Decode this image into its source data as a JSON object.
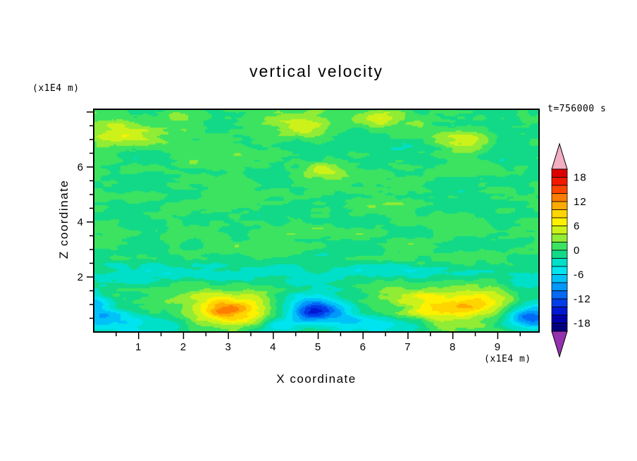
{
  "chart_data": {
    "type": "heatmap",
    "subtype": "filled-contour",
    "title": "vertical velocity",
    "time_label": "t=756000 s",
    "xlabel": "X coordinate",
    "ylabel": "Z coordinate",
    "x_unit": "(x1E4 m)",
    "y_unit": "(x1E4 m)",
    "xlim": [
      0,
      9.92
    ],
    "ylim": [
      0,
      8.1
    ],
    "x_ticks": [
      1,
      2,
      3,
      4,
      5,
      6,
      7,
      8,
      9
    ],
    "y_ticks": [
      2,
      4,
      6
    ],
    "levels": {
      "min": -20,
      "max": 20,
      "step": 2
    },
    "colorbar_labels": [
      {
        "text": "18",
        "value": 18
      },
      {
        "text": "12",
        "value": 12
      },
      {
        "text": "6",
        "value": 6
      },
      {
        "text": "0",
        "value": 0
      },
      {
        "text": "-6",
        "value": -6
      },
      {
        "text": "-12",
        "value": -12
      },
      {
        "text": "-18",
        "value": -18
      }
    ],
    "palette": {
      "over": "#F2AEC2",
      "under": "#9431AE",
      "bins": [
        "#DC0000",
        "#F21800",
        "#FF4600",
        "#FF7D00",
        "#FFAA00",
        "#FFD400",
        "#FDF100",
        "#CDF21A",
        "#90EC34",
        "#3BE361",
        "#12D987",
        "#00DFC8",
        "#00E4F0",
        "#00C2F8",
        "#0098FA",
        "#0069F5",
        "#003CE8",
        "#0018D2",
        "#0000AA",
        "#00007D"
      ]
    },
    "features": [
      {
        "x": 3.0,
        "z": 0.9,
        "peak": 13,
        "desc": "strong updraft, yellow blob with orange core"
      },
      {
        "x": 8.0,
        "z": 0.95,
        "peak": 10,
        "desc": "updraft, broad yellow blob with golden flecks"
      },
      {
        "x": 4.95,
        "z": 0.8,
        "peak": -16,
        "desc": "strong downdraft, blue blob with dark core"
      },
      {
        "x": 9.75,
        "z": 0.55,
        "peak": -12,
        "desc": "downdraft at right edge"
      },
      {
        "x": 0.25,
        "z": 0.5,
        "peak": -8,
        "desc": "cyan/light-blue downdraft at left edge"
      },
      {
        "x": 5.0,
        "z": 5.0,
        "peak": 2,
        "desc": "background turbulent green mottling near 0, yellow specks aloft"
      }
    ],
    "field_model": {
      "noise": [
        {
          "fx": 1.0,
          "fz": 2.2,
          "amp": 1.5,
          "seed": 11
        },
        {
          "fx": 2.2,
          "fz": 4.5,
          "amp": 1.1,
          "seed": 23
        },
        {
          "fx": 4.4,
          "fz": 9.0,
          "amp": 0.7,
          "seed": 37
        }
      ],
      "blobs": [
        [
          3.0,
          0.85,
          0.75,
          0.45,
          9.5
        ],
        [
          2.95,
          0.8,
          0.25,
          0.18,
          3.5
        ],
        [
          8.05,
          0.95,
          1.0,
          0.5,
          8.0
        ],
        [
          7.6,
          0.75,
          0.3,
          0.2,
          2.5
        ],
        [
          8.5,
          1.05,
          0.32,
          0.22,
          2.2
        ],
        [
          4.95,
          0.8,
          0.55,
          0.42,
          -12.0
        ],
        [
          4.9,
          0.75,
          0.22,
          0.16,
          -4.0
        ],
        [
          9.75,
          0.55,
          0.45,
          0.35,
          -12.0
        ],
        [
          9.6,
          1.6,
          0.4,
          0.3,
          -4.0
        ],
        [
          0.25,
          0.45,
          0.5,
          0.35,
          -7.0
        ],
        [
          0.05,
          1.05,
          0.25,
          0.3,
          -6.0
        ],
        [
          1.2,
          0.3,
          0.6,
          0.25,
          -4.0
        ],
        [
          4.15,
          0.25,
          0.4,
          0.2,
          -4.0
        ],
        [
          5.9,
          0.35,
          0.45,
          0.25,
          -5.0
        ],
        [
          6.85,
          0.3,
          0.4,
          0.2,
          -4.0
        ],
        [
          5.0,
          2.05,
          5.0,
          0.28,
          -2.8
        ],
        [
          0.6,
          7.2,
          0.45,
          0.35,
          5.5
        ],
        [
          1.15,
          6.85,
          0.22,
          0.16,
          2.5
        ],
        [
          4.5,
          7.55,
          0.5,
          0.3,
          4.5
        ],
        [
          6.4,
          7.8,
          0.4,
          0.25,
          4.0
        ],
        [
          8.25,
          6.9,
          0.5,
          0.35,
          4.5
        ],
        [
          2.2,
          6.15,
          0.35,
          0.25,
          3.5
        ],
        [
          5.15,
          5.9,
          0.3,
          0.2,
          3.5
        ]
      ]
    }
  }
}
